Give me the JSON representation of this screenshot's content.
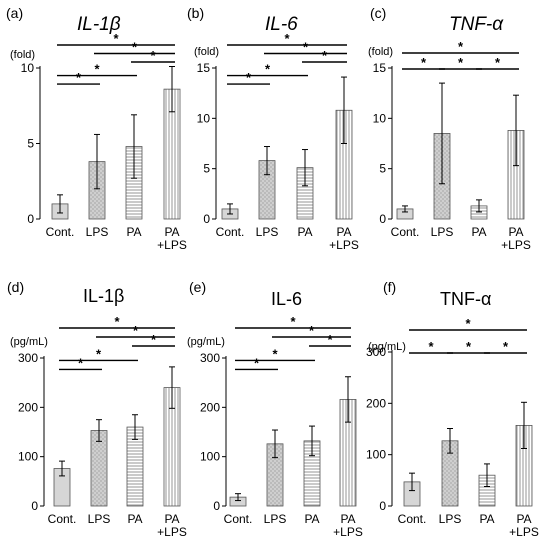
{
  "colors": {
    "axis": "#000000",
    "bar_outline": "#555555",
    "dots_fill": "#cfcfcf",
    "plain_fill": "#d6d6d6",
    "stripe": "#7a7a7a",
    "bracket": "#000000"
  },
  "chart_data": [
    {
      "panel": "(a)",
      "title": "IL-1β",
      "title_italic": true,
      "type": "bar",
      "ylabel": "(fold)",
      "ylim": [
        0,
        10
      ],
      "yticks": [
        0,
        5,
        10
      ],
      "categories": [
        "Cont.",
        "LPS",
        "PA",
        "PA\n+LPS"
      ],
      "values": [
        1.0,
        3.8,
        4.8,
        8.6
      ],
      "errors": [
        0.6,
        1.8,
        2.1,
        1.5
      ],
      "patterns": [
        "plain",
        "dots",
        "hstripe",
        "vstripe"
      ],
      "significance": [
        {
          "from": 0,
          "to": 1,
          "label": "*"
        },
        {
          "from": 0,
          "to": 2,
          "label": "*"
        },
        {
          "from": 0,
          "to": 3,
          "label": "*"
        },
        {
          "from": 1,
          "to": 3,
          "label": "*"
        },
        {
          "from": 2,
          "to": 3,
          "label": "*"
        }
      ]
    },
    {
      "panel": "(b)",
      "title": "IL-6",
      "title_italic": true,
      "type": "bar",
      "ylabel": "(fold)",
      "ylim": [
        0,
        15
      ],
      "yticks": [
        0,
        5,
        10,
        15
      ],
      "categories": [
        "Cont.",
        "LPS",
        "PA",
        "PA\n+LPS"
      ],
      "values": [
        1.0,
        5.8,
        5.1,
        10.8
      ],
      "errors": [
        0.5,
        1.4,
        1.8,
        3.3
      ],
      "patterns": [
        "plain",
        "dots",
        "hstripe",
        "vstripe"
      ],
      "significance": [
        {
          "from": 0,
          "to": 1,
          "label": "*"
        },
        {
          "from": 0,
          "to": 2,
          "label": "*"
        },
        {
          "from": 0,
          "to": 3,
          "label": "*"
        },
        {
          "from": 1,
          "to": 3,
          "label": "*"
        },
        {
          "from": 2,
          "to": 3,
          "label": "*"
        }
      ]
    },
    {
      "panel": "(c)",
      "title": "TNF-α",
      "title_italic": true,
      "type": "bar",
      "ylabel": "(fold)",
      "ylim": [
        0,
        15
      ],
      "yticks": [
        0,
        5,
        10,
        15
      ],
      "categories": [
        "Cont.",
        "LPS",
        "PA",
        "PA\n+LPS"
      ],
      "values": [
        1.0,
        8.5,
        1.3,
        8.8
      ],
      "errors": [
        0.3,
        5.0,
        0.6,
        3.5
      ],
      "patterns": [
        "plain",
        "dots",
        "hstripe",
        "vstripe"
      ],
      "significance": [
        {
          "from": 0,
          "to": 1,
          "label": "*"
        },
        {
          "from": 1,
          "to": 2,
          "label": "*"
        },
        {
          "from": 2,
          "to": 3,
          "label": "*"
        },
        {
          "from": 0,
          "to": 3,
          "label": "*"
        }
      ]
    },
    {
      "panel": "(d)",
      "title": "IL-1β",
      "title_italic": false,
      "type": "bar",
      "ylabel": "(pg/mL)",
      "ylim": [
        0,
        300
      ],
      "yticks": [
        0,
        100,
        200,
        300
      ],
      "categories": [
        "Cont.",
        "LPS",
        "PA",
        "PA\n+LPS"
      ],
      "values": [
        76,
        153,
        160,
        240
      ],
      "errors": [
        15,
        22,
        25,
        42
      ],
      "patterns": [
        "plain",
        "dots",
        "hstripe",
        "vstripe"
      ],
      "significance": [
        {
          "from": 0,
          "to": 1,
          "label": "*"
        },
        {
          "from": 0,
          "to": 2,
          "label": "*"
        },
        {
          "from": 0,
          "to": 3,
          "label": "*"
        },
        {
          "from": 1,
          "to": 3,
          "label": "*"
        },
        {
          "from": 2,
          "to": 3,
          "label": "*"
        }
      ]
    },
    {
      "panel": "(e)",
      "title": "IL-6",
      "title_italic": false,
      "type": "bar",
      "ylabel": "(pg/mL)",
      "ylim": [
        0,
        300
      ],
      "yticks": [
        0,
        100,
        200,
        300
      ],
      "categories": [
        "Cont.",
        "LPS",
        "PA",
        "PA\n+LPS"
      ],
      "values": [
        18,
        126,
        132,
        216
      ],
      "errors": [
        7,
        28,
        30,
        46
      ],
      "patterns": [
        "plain",
        "dots",
        "hstripe",
        "vstripe"
      ],
      "significance": [
        {
          "from": 0,
          "to": 1,
          "label": "*"
        },
        {
          "from": 0,
          "to": 2,
          "label": "*"
        },
        {
          "from": 0,
          "to": 3,
          "label": "*"
        },
        {
          "from": 1,
          "to": 3,
          "label": "*"
        },
        {
          "from": 2,
          "to": 3,
          "label": "*"
        }
      ]
    },
    {
      "panel": "(f)",
      "title": "TNF-α",
      "title_italic": false,
      "type": "bar",
      "ylabel": "(pg/mL)",
      "ylim": [
        0,
        300
      ],
      "yticks": [
        0,
        100,
        200,
        300
      ],
      "categories": [
        "Cont.",
        "LPS",
        "PA",
        "PA\n+LPS"
      ],
      "values": [
        47,
        127,
        60,
        157
      ],
      "errors": [
        17,
        24,
        22,
        45
      ],
      "patterns": [
        "plain",
        "dots",
        "hstripe",
        "vstripe"
      ],
      "significance": [
        {
          "from": 0,
          "to": 1,
          "label": "*"
        },
        {
          "from": 1,
          "to": 2,
          "label": "*"
        },
        {
          "from": 2,
          "to": 3,
          "label": "*"
        },
        {
          "from": 0,
          "to": 3,
          "label": "*"
        }
      ]
    }
  ]
}
